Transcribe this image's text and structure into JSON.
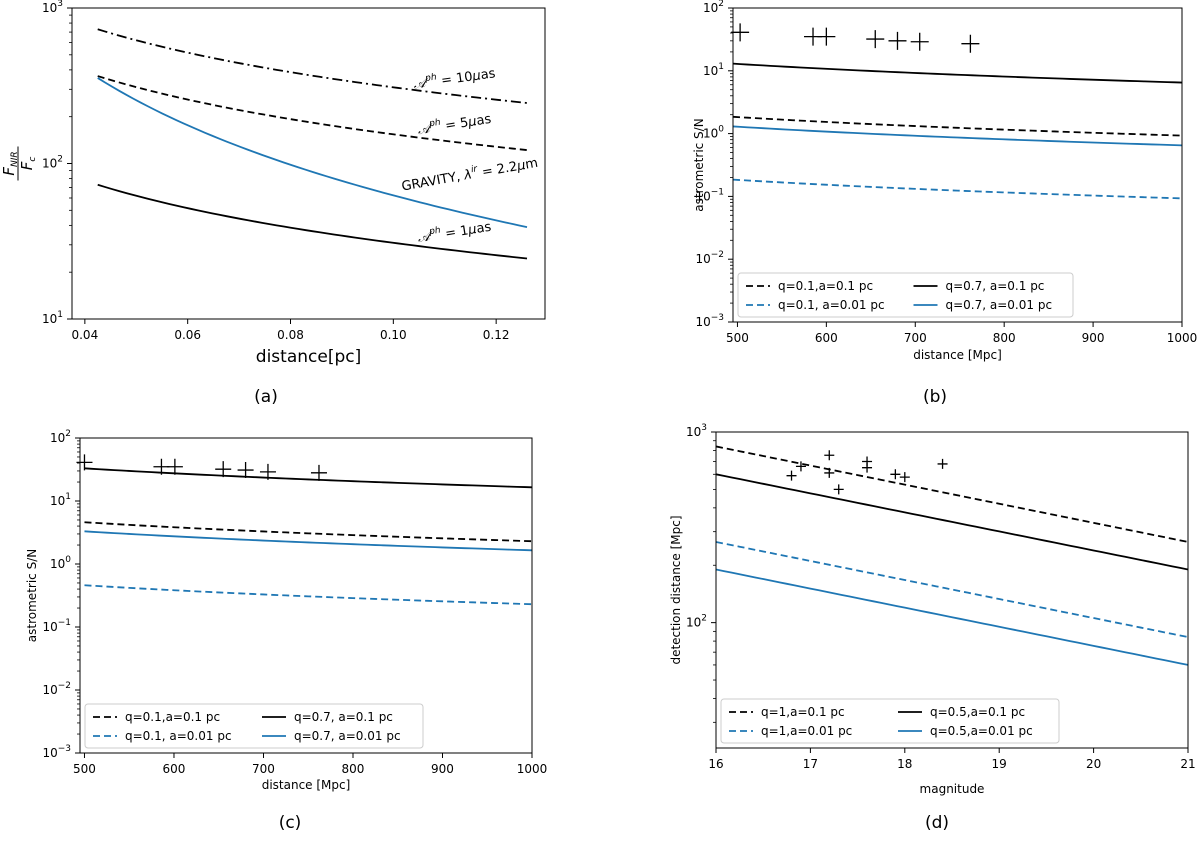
{
  "chart_data": [
    {
      "id": "a",
      "type": "line",
      "caption": "(a)",
      "xlabel": "distance[pc]",
      "ylabel": "F_NIR / F_c",
      "ylabel_num": "F",
      "ylabel_num_sub": "NIR",
      "ylabel_den": "F",
      "ylabel_den_sub": "c",
      "xscale": "linear",
      "yscale": "log",
      "xlim": [
        0.0375,
        0.1295
      ],
      "ylim": [
        10,
        1000
      ],
      "xticks": [
        0.04,
        0.06,
        0.08,
        0.1,
        0.12
      ],
      "xtick_labels": [
        "0.04",
        "0.06",
        "0.08",
        "0.10",
        "0.12"
      ],
      "yticks": [
        10,
        100,
        1000
      ],
      "ytick_labels": [
        [
          "10",
          "1"
        ],
        [
          "10",
          "2"
        ],
        [
          "10",
          "3"
        ]
      ],
      "series": [
        {
          "name": "Aph=10uas",
          "label_parts": [
            "𝒜",
            "ph",
            " = 10",
            "μ",
            "as"
          ],
          "label_at": [
            0.112,
            330
          ],
          "label_rotate": -8,
          "color": "#000000",
          "dash": "dashdot",
          "x": [
            0.0425,
            0.126
          ],
          "y": [
            730,
            245
          ],
          "curve": "power"
        },
        {
          "name": "Aph=5uas",
          "label_parts": [
            "𝒜",
            "ph",
            " = 5",
            "μ",
            "as"
          ],
          "label_at": [
            0.112,
            168
          ],
          "label_rotate": -9,
          "color": "#000000",
          "dash": "dashed",
          "x": [
            0.0425,
            0.126
          ],
          "y": [
            365,
            122
          ],
          "curve": "power"
        },
        {
          "name": "GRAVITY",
          "label_parts": [
            "GRAVITY, ",
            "λ",
            "ir",
            " = 2.2",
            "μ",
            "m"
          ],
          "label_at": [
            0.115,
            80
          ],
          "label_rotate": -10,
          "color": "#1f77b4",
          "dash": "solid",
          "x": [
            0.0425,
            0.126
          ],
          "y": [
            355,
            39
          ],
          "curve": "power"
        },
        {
          "name": "Aph=1uas",
          "label_parts": [
            "𝒜",
            "ph",
            " = 1",
            "μ",
            "as"
          ],
          "label_at": [
            0.112,
            34
          ],
          "label_rotate": -9,
          "color": "#000000",
          "dash": "solid",
          "x": [
            0.0425,
            0.126
          ],
          "y": [
            73,
            24.5
          ],
          "curve": "power"
        }
      ]
    },
    {
      "id": "b",
      "type": "line",
      "caption": "(b)",
      "xlabel": "distance [Mpc]",
      "ylabel": "astrometric S/N",
      "xscale": "linear",
      "yscale": "log",
      "xlim": [
        495,
        1000
      ],
      "ylim": [
        0.001,
        100
      ],
      "xticks": [
        500,
        600,
        700,
        800,
        900,
        1000
      ],
      "xtick_labels": [
        "500",
        "600",
        "700",
        "800",
        "900",
        "1000"
      ],
      "yticks": [
        0.001,
        0.01,
        0.1,
        1,
        10,
        100
      ],
      "ytick_labels": [
        [
          "10",
          "−3"
        ],
        [
          "10",
          "−2"
        ],
        [
          "10",
          "−1"
        ],
        [
          "10",
          "0"
        ],
        [
          "10",
          "1"
        ],
        [
          "10",
          "2"
        ]
      ],
      "series": [
        {
          "name": "q=0.1,a=0.1 pc",
          "color": "#000000",
          "dash": "dashed",
          "x": [
            495,
            1000
          ],
          "y": [
            1.85,
            0.93
          ],
          "curve": "power"
        },
        {
          "name": "q=0.7, a=0.1 pc",
          "color": "#000000",
          "dash": "solid",
          "x": [
            495,
            1000
          ],
          "y": [
            13,
            6.5
          ],
          "curve": "power"
        },
        {
          "name": "q=0.1, a=0.01 pc",
          "color": "#1f77b4",
          "dash": "dashed",
          "x": [
            495,
            1000
          ],
          "y": [
            0.185,
            0.093
          ],
          "curve": "power"
        },
        {
          "name": "q=0.7, a=0.01 pc",
          "color": "#1f77b4",
          "dash": "solid",
          "x": [
            495,
            1000
          ],
          "y": [
            1.3,
            0.65
          ],
          "curve": "power"
        }
      ],
      "markers": {
        "symbol": "+",
        "size": 9,
        "x": [
          503,
          585,
          600,
          655,
          680,
          705,
          762
        ],
        "y": [
          41,
          35,
          35,
          32,
          30,
          29,
          27
        ]
      },
      "legend": {
        "placement": "lower-left",
        "columns": 2,
        "order": [
          0,
          1,
          2,
          3
        ]
      }
    },
    {
      "id": "c",
      "type": "line",
      "caption": "(c)",
      "xlabel": "distance [Mpc]",
      "ylabel": "astrometric S/N",
      "xscale": "linear",
      "yscale": "log",
      "xlim": [
        495,
        1000
      ],
      "ylim": [
        0.001,
        100
      ],
      "xticks": [
        500,
        600,
        700,
        800,
        900,
        1000
      ],
      "xtick_labels": [
        "500",
        "600",
        "700",
        "800",
        "900",
        "1000"
      ],
      "yticks": [
        0.001,
        0.01,
        0.1,
        1,
        10,
        100
      ],
      "ytick_labels": [
        [
          "10",
          "−3"
        ],
        [
          "10",
          "−2"
        ],
        [
          "10",
          "−1"
        ],
        [
          "10",
          "0"
        ],
        [
          "10",
          "1"
        ],
        [
          "10",
          "2"
        ]
      ],
      "series": [
        {
          "name": "q=0.1,a=0.1 pc",
          "color": "#000000",
          "dash": "dashed",
          "x": [
            500,
            1000
          ],
          "y": [
            4.6,
            2.3
          ],
          "curve": "power"
        },
        {
          "name": "q=0.7, a=0.1 pc",
          "color": "#000000",
          "dash": "solid",
          "x": [
            500,
            1000
          ],
          "y": [
            33,
            16.5
          ],
          "curve": "power"
        },
        {
          "name": "q=0.1, a=0.01 pc",
          "color": "#1f77b4",
          "dash": "dashed",
          "x": [
            500,
            1000
          ],
          "y": [
            0.46,
            0.23
          ],
          "curve": "power"
        },
        {
          "name": "q=0.7, a=0.01 pc",
          "color": "#1f77b4",
          "dash": "solid",
          "x": [
            500,
            1000
          ],
          "y": [
            3.3,
            1.65
          ],
          "curve": "power"
        }
      ],
      "markers": {
        "symbol": "+",
        "size": 8,
        "x": [
          500,
          586,
          601,
          655,
          680,
          705,
          762
        ],
        "y": [
          41,
          35,
          35,
          32,
          31,
          29,
          28
        ]
      },
      "legend": {
        "placement": "lower-left",
        "columns": 2,
        "order": [
          0,
          1,
          2,
          3
        ]
      }
    },
    {
      "id": "d",
      "type": "line",
      "caption": "(d)",
      "xlabel": "magnitude",
      "ylabel": "detection distance [Mpc]",
      "xscale": "linear",
      "yscale": "log",
      "xlim": [
        16,
        21
      ],
      "ylim": [
        22,
        1000
      ],
      "xticks": [
        16,
        17,
        18,
        19,
        20,
        21
      ],
      "xtick_labels": [
        "16",
        "17",
        "18",
        "19",
        "20",
        "21"
      ],
      "yticks": [
        100,
        1000
      ],
      "ytick_labels": [
        [
          "10",
          "2"
        ],
        [
          "10",
          "3"
        ]
      ],
      "series": [
        {
          "name": "q=1,a=0.1 pc",
          "color": "#000000",
          "dash": "dashed",
          "x": [
            16,
            21
          ],
          "y": [
            840,
            265
          ],
          "curve": "exp"
        },
        {
          "name": "q=0.5,a=0.1 pc",
          "color": "#000000",
          "dash": "solid",
          "x": [
            16,
            21
          ],
          "y": [
            600,
            190
          ],
          "curve": "exp"
        },
        {
          "name": "q=1,a=0.01 pc",
          "color": "#1f77b4",
          "dash": "dashed",
          "x": [
            16,
            21
          ],
          "y": [
            265,
            84
          ],
          "curve": "exp"
        },
        {
          "name": "q=0.5,a=0.01 pc",
          "color": "#1f77b4",
          "dash": "solid",
          "x": [
            16,
            21
          ],
          "y": [
            190,
            60
          ],
          "curve": "exp"
        }
      ],
      "markers": {
        "symbol": "+",
        "size": 5,
        "x": [
          16.8,
          16.9,
          17.2,
          17.2,
          17.3,
          17.6,
          17.6,
          17.9,
          18.0,
          18.4
        ],
        "y": [
          590,
          660,
          755,
          610,
          500,
          700,
          650,
          600,
          580,
          680
        ]
      },
      "legend": {
        "placement": "lower-left",
        "columns": 2,
        "order": [
          0,
          1,
          2,
          3
        ]
      }
    }
  ]
}
